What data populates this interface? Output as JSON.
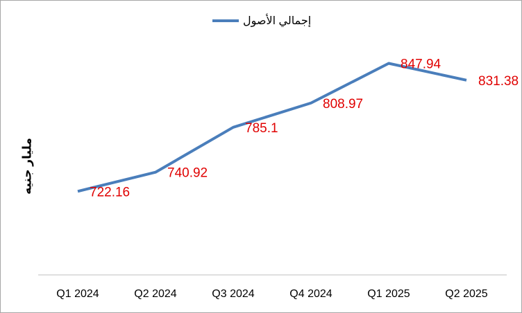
{
  "chart_data": {
    "type": "line",
    "y_label": "مليار جنيه",
    "categories": [
      "Q1 2024",
      "Q2 2024",
      "Q3 2024",
      "Q4 2024",
      "Q1 2025",
      "Q2 2025"
    ],
    "series": [
      {
        "name": "إجمالي الأصول",
        "color": "#4a7ebb",
        "values": [
          722.16,
          740.92,
          785.1,
          808.97,
          847.94,
          831.38
        ]
      }
    ],
    "label_color": "#e00000",
    "ylim": [
      640,
      900
    ],
    "legend": "top"
  }
}
